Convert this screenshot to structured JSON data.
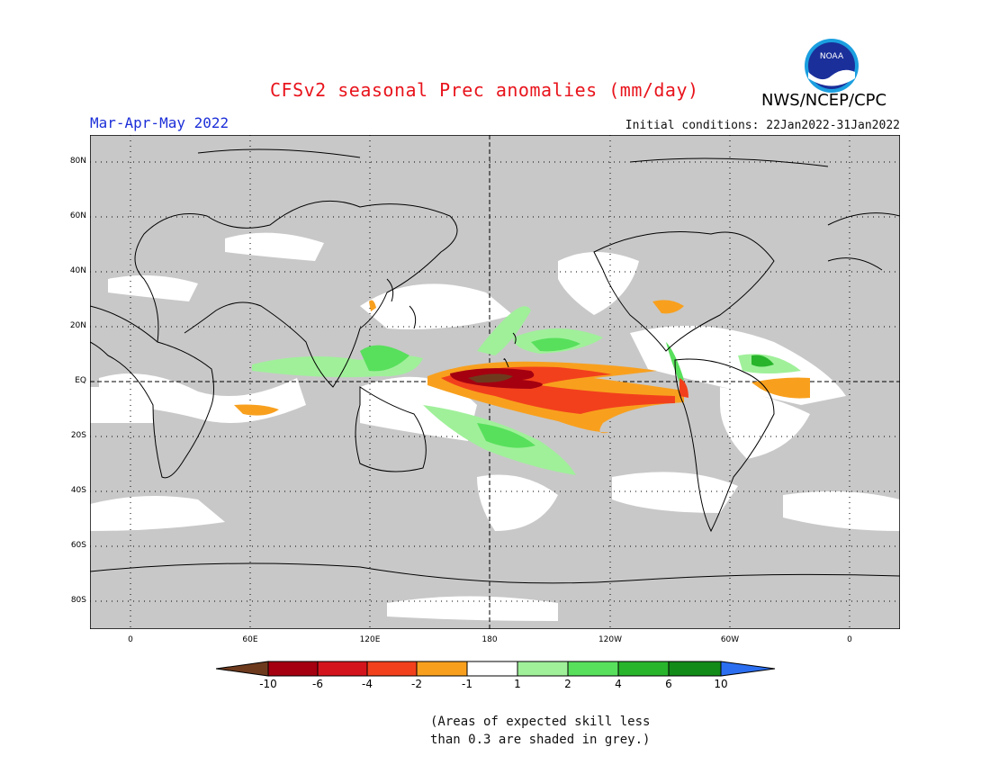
{
  "title": "CFSv2 seasonal Prec anomalies (mm/day)",
  "agency": "NWS/NCEP/CPC",
  "logo_text": "NOAA",
  "season": "Mar-Apr-May 2022",
  "initial_conditions": "Initial conditions: 22Jan2022-31Jan2022",
  "lat_labels": [
    "80N",
    "60N",
    "40N",
    "20N",
    "EQ",
    "20S",
    "40S",
    "60S",
    "80S"
  ],
  "lon_labels": [
    "0",
    "60E",
    "120E",
    "180",
    "120W",
    "60W",
    "0"
  ],
  "colorbar": {
    "labels": [
      "-10",
      "-6",
      "-4",
      "-2",
      "-1",
      "1",
      "2",
      "4",
      "6",
      "10"
    ],
    "colors": [
      "#6e3a1e",
      "#a40010",
      "#d4141c",
      "#f2401c",
      "#f8a01e",
      "#ffffff",
      "#a0f09a",
      "#58e05c",
      "#28b52c",
      "#128b18",
      "#2b6ef0"
    ]
  },
  "skill_note_line1": "(Areas of expected skill less",
  "skill_note_line2": "than 0.3 are shaded in grey.)",
  "colors": {
    "title": "#e8141c",
    "season": "#1c2fd8",
    "grey_mask": "#c8c8c8"
  }
}
